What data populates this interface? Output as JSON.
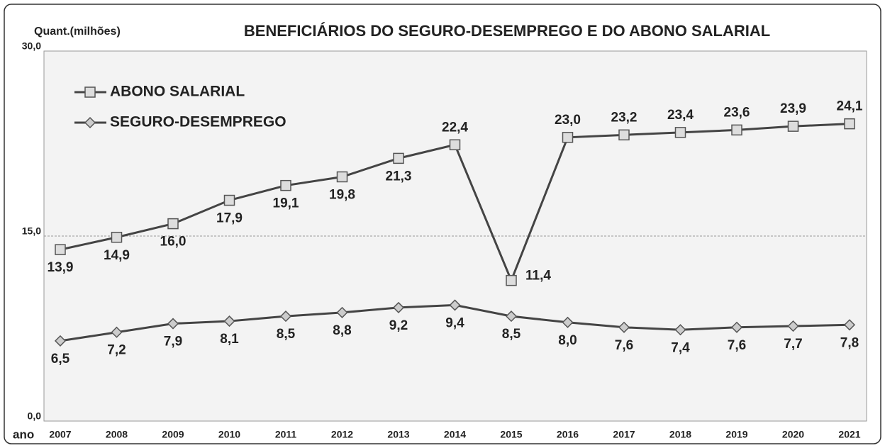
{
  "chart_data": {
    "type": "line",
    "title": "BENEFICIÁRIOS DO SEGURO-DESEMPREGO E DO ABONO SALARIAL",
    "ylabel": "Quant.(milhões)",
    "xlabel": "ano",
    "categories": [
      "2007",
      "2008",
      "2009",
      "2010",
      "2011",
      "2012",
      "2013",
      "2014",
      "2015",
      "2016",
      "2017",
      "2018",
      "2019",
      "2020",
      "2021"
    ],
    "ylim": [
      0,
      30
    ],
    "yticks": [
      {
        "value": 0,
        "label": "0,0"
      },
      {
        "value": 15,
        "label": "15,0"
      },
      {
        "value": 30,
        "label": "30,0"
      }
    ],
    "grid": true,
    "legend": "upper left",
    "series": [
      {
        "name": "ABONO SALARIAL",
        "color": "#555555",
        "marker": "square",
        "values": [
          13.9,
          14.9,
          16.0,
          17.9,
          19.1,
          19.8,
          21.3,
          22.4,
          11.4,
          23.0,
          23.2,
          23.4,
          23.6,
          23.9,
          24.1
        ],
        "value_labels": [
          "13,9",
          "14,9",
          "16,0",
          "17,9",
          "19,1",
          "19,8",
          "21,3",
          "22,4",
          "11,4",
          "23,0",
          "23,2",
          "23,4",
          "23,6",
          "23,9",
          "24,1"
        ]
      },
      {
        "name": "SEGURO-DESEMPREGO",
        "color": "#555555",
        "marker": "diamond",
        "values": [
          6.5,
          7.2,
          7.9,
          8.1,
          8.5,
          8.8,
          9.2,
          9.4,
          8.5,
          8.0,
          7.6,
          7.4,
          7.6,
          7.7,
          7.8
        ],
        "value_labels": [
          "6,5",
          "7,2",
          "7,9",
          "8,1",
          "8,5",
          "8,8",
          "9,2",
          "9,4",
          "8,5",
          "8,0",
          "7,6",
          "7,4",
          "7,6",
          "7,7",
          "7,8"
        ]
      }
    ]
  }
}
